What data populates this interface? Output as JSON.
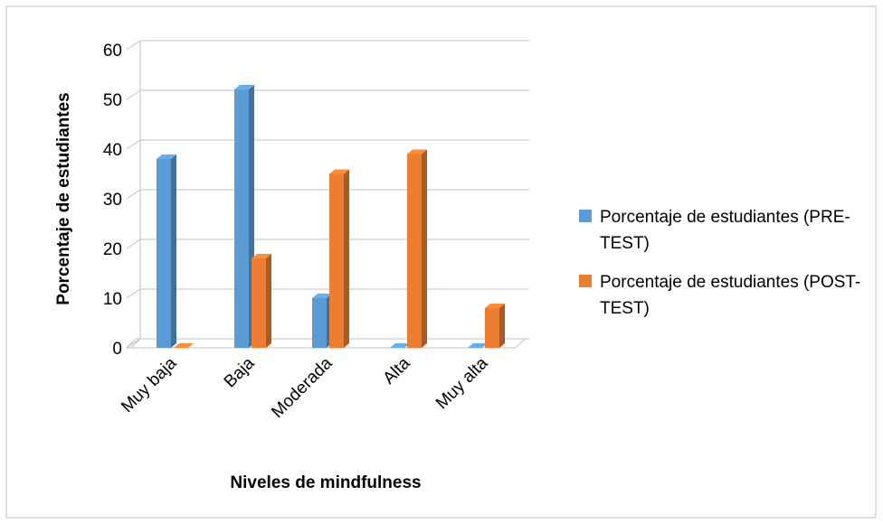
{
  "chart_data": {
    "type": "bar3d",
    "xlabel": "Niveles de mindfulness",
    "ylabel": "Porcentaje de estudiantes",
    "categories": [
      "Muy baja",
      "Baja",
      "Moderada",
      "Alta",
      "Muy alta"
    ],
    "series": [
      {
        "name": "Porcentaje de estudiantes (PRE-TEST)",
        "color": "#5b9bd5",
        "values": [
          38,
          52,
          10,
          0,
          0
        ]
      },
      {
        "name": "Porcentaje de estudiantes (POST-TEST)",
        "color": "#ed7d31",
        "values": [
          0,
          18,
          35,
          39,
          8
        ]
      }
    ],
    "ylim": [
      0,
      60
    ],
    "yticks": [
      0,
      10,
      20,
      30,
      40,
      50,
      60
    ],
    "grid": true,
    "legend": "right"
  }
}
